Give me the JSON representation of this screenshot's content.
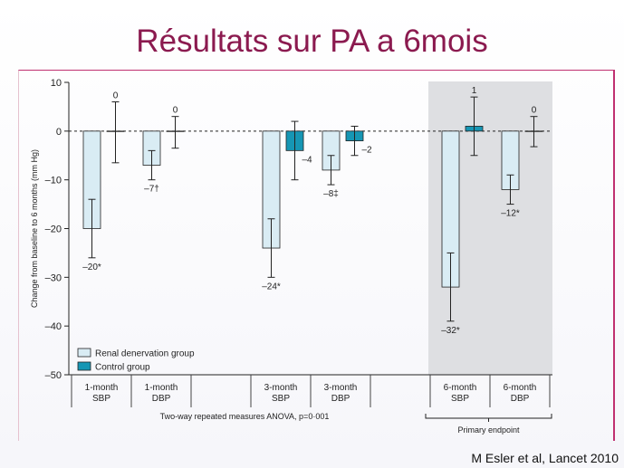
{
  "slide": {
    "title": "Résultats sur PA a 6mois",
    "citation": "M Esler et al, Lancet 2010"
  },
  "colors": {
    "title": "#8b1a4f",
    "frame": "#c03070",
    "renal": "#d9ecf4",
    "control": "#1696b4",
    "highlight": "#dedfe2"
  },
  "chart_data": {
    "type": "bar",
    "ylabel": "Change from baseline to 6 months (mm Hg)",
    "ylim": [
      -50,
      10
    ],
    "yticks": [
      10,
      0,
      -10,
      -20,
      -30,
      -40,
      -50
    ],
    "zero_line": "dashed",
    "legend": {
      "placement": "bottom-left",
      "items": [
        {
          "name": "Renal denervation group",
          "color": "#d9ecf4"
        },
        {
          "name": "Control group",
          "color": "#1696b4"
        }
      ]
    },
    "categories": [
      {
        "line1": "1-month",
        "line2": "SBP"
      },
      {
        "line1": "1-month",
        "line2": "DBP"
      },
      {
        "line1": "",
        "line2": ""
      },
      {
        "line1": "3-month",
        "line2": "SBP"
      },
      {
        "line1": "3-month",
        "line2": "DBP"
      },
      {
        "line1": "",
        "line2": ""
      },
      {
        "line1": "6-month",
        "line2": "SBP"
      },
      {
        "line1": "6-month",
        "line2": "DBP"
      }
    ],
    "series": [
      {
        "name": "Renal denervation group",
        "values": [
          -20,
          -7,
          null,
          -24,
          -8,
          null,
          -32,
          -12
        ],
        "error_high": [
          -14,
          -4,
          null,
          -18,
          -5,
          null,
          -25,
          -9
        ],
        "error_low": [
          -26,
          -10,
          null,
          -30,
          -11,
          null,
          -39,
          -15
        ],
        "labels": [
          "–20*",
          "–7†",
          "",
          "–24*",
          "–8‡",
          "",
          "–32*",
          "–12*"
        ]
      },
      {
        "name": "Control group",
        "values": [
          0,
          0,
          null,
          -4,
          -2,
          null,
          1,
          0
        ],
        "error_high": [
          6,
          3,
          null,
          2,
          1,
          null,
          7,
          3
        ],
        "error_low": [
          -6.5,
          -3.5,
          null,
          -10,
          -5,
          null,
          -5,
          -3.2
        ],
        "labels": [
          "0",
          "0",
          "",
          "–4",
          "–2",
          "",
          "1",
          "0"
        ]
      }
    ],
    "group_note": "Two-way repeated measures ANOVA, p=0·001",
    "highlight_note": "Primary endpoint"
  }
}
